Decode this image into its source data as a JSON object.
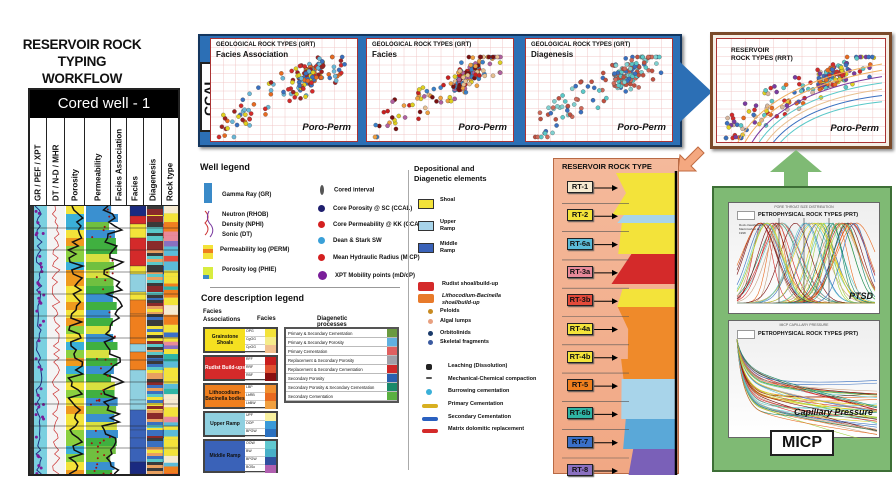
{
  "title": {
    "line1": "RESERVOIR ROCK TYPING",
    "line2": "WORKFLOW"
  },
  "well": {
    "header": "Cored well - 1",
    "columns": [
      "GR / PEF / XPT",
      "DT / N-D / MHR",
      "Porosity",
      "Permeability",
      "Facies Association",
      "Facies",
      "Diagenesis",
      "Rock type"
    ]
  },
  "ccal": {
    "label": "CCAL",
    "plots": [
      {
        "title": "GEOLOGICAL ROCK TYPES (GRT)",
        "subtitle": "Facies Association",
        "tag": "Poro-Perm"
      },
      {
        "title": "GEOLOGICAL ROCK TYPES (GRT)",
        "subtitle": "Facies",
        "tag": "Poro-Perm"
      },
      {
        "title": "GEOLOGICAL ROCK TYPES (GRT)",
        "subtitle": "Diagenesis",
        "tag": "Poro-Perm"
      }
    ]
  },
  "rrt": {
    "title1": "RESERVOIR",
    "title2": "ROCK TYPES (RRT)",
    "tag": "Poro-Perm"
  },
  "well_legend": {
    "title": "Well legend",
    "left": [
      "Gamma Ray (GR)",
      "Neutron (RHOB)",
      "Density (NPHI)",
      "Sonic (DT)",
      "Permeability log (PERM)",
      "Porosity log (PHIE)"
    ],
    "right": [
      {
        "label": "Cored interval",
        "color": "#555555"
      },
      {
        "label": "Core Porosity @ SC (CCAL)",
        "color": "#1f1f6e"
      },
      {
        "label": "Core Permeability @ KK (CCAL)",
        "color": "#d42020"
      },
      {
        "label": "Dean & Stark SW",
        "color": "#3aa0d8"
      },
      {
        "label": "Mean Hydraulic Radius (MICP)",
        "color": "#d42020"
      },
      {
        "label": "XPT Mobility points (mD/cP)",
        "color": "#7a1f9a"
      }
    ]
  },
  "core_legend": {
    "title": "Core description legend",
    "col1": "Facies Associations",
    "col2": "Facies",
    "col3": "Diagenetic processes",
    "associations": [
      {
        "label": "Grainstone Shoals",
        "color": "#f5e020",
        "facies": [
          "OPG",
          "CgOG",
          "CpOG"
        ],
        "swatches": [
          "#f3e33a",
          "#f5ec8a",
          "#f2c08f"
        ]
      },
      {
        "label": "Rudist Build-ups",
        "color": "#d42a2a",
        "facies": [
          "RFF",
          "RRF",
          "RBF"
        ],
        "swatches": [
          "#c81e1e",
          "#e05030",
          "#8a1010"
        ]
      },
      {
        "label": "Lithocodium-Bacinella bodies",
        "color": "#ef7f1e",
        "facies": [
          "LBP",
          "LbRB",
          "LbBW"
        ],
        "swatches": [
          "#f09030",
          "#e86a20",
          "#f0a040"
        ]
      },
      {
        "label": "Upper Ramp",
        "color": "#8fd0e0",
        "facies": [
          "UPF",
          "OOP",
          "BPGW"
        ],
        "swatches": [
          "#f8f0a0",
          "#3a9ad8",
          "#2a70c0"
        ]
      },
      {
        "label": "Middle Ramp",
        "color": "#3a62b8",
        "facies": [
          "OOW",
          "BW",
          "BPGW",
          "BOSc"
        ],
        "swatches": [
          "#60c8d0",
          "#48b0c8",
          "#3050a0",
          "#b060b0"
        ]
      }
    ],
    "processes": [
      {
        "label": "Primary & Secondary Cementation",
        "color": "#6a9a40"
      },
      {
        "label": "Primary & Secondary Porosity",
        "color": "#60b0e0"
      },
      {
        "label": "Primary Cementation",
        "color": "#e06060"
      },
      {
        "label": "Replacement & Secondary Porosity",
        "color": "#a0a0a8"
      },
      {
        "label": "Replacement & Secondary Cementation",
        "color": "#d02828"
      },
      {
        "label": "Secondary Porosity",
        "color": "#2a60b0"
      },
      {
        "label": "Secondary Porosity & Secondary Cementation",
        "color": "#1a8a6a"
      },
      {
        "label": "Secondary Cementation",
        "color": "#5ab040"
      }
    ]
  },
  "depositional": {
    "title1": "Depositional and",
    "title2": "Diagenetic elements",
    "boxes": [
      {
        "label": "Shoal",
        "color": "#f3e33a"
      },
      {
        "label": "Upper Ramp",
        "color": "#a8d4ea"
      },
      {
        "label": "Middle Ramp",
        "color": "#3a62b8"
      }
    ],
    "items": [
      "Rudist shoal/build-up",
      "Lithocodium-Bacinella shoal/build-up",
      "Peloids",
      "Algal lumps",
      "Orbitolinids",
      "Skeletal fragments",
      "Leaching (Dissolution)",
      "Mechanical-Chemical compaction",
      "Burrowing cementation",
      "Primary Cementation",
      "Secondary Cementation",
      "Matrix dolomitic replacement"
    ]
  },
  "rock_types": {
    "title": "RESERVOIR ROCK TYPE",
    "items": [
      {
        "label": "RT-1",
        "color": "#f6ead0"
      },
      {
        "label": "RT-2",
        "color": "#f3e33a"
      },
      {
        "label": "RT-6a",
        "color": "#5bbbd8"
      },
      {
        "label": "RT-3a",
        "color": "#e98a9a"
      },
      {
        "label": "RT-3b",
        "color": "#e34a3a"
      },
      {
        "label": "RT-4a",
        "color": "#f3e33a"
      },
      {
        "label": "RT-4b",
        "color": "#f3e33a"
      },
      {
        "label": "RT-5",
        "color": "#ef7f1e"
      },
      {
        "label": "RT-6b",
        "color": "#2fb5a5"
      },
      {
        "label": "RT-7",
        "color": "#3a70c8"
      },
      {
        "label": "RT-8",
        "color": "#8a70c0"
      }
    ]
  },
  "micp": {
    "label": "MICP",
    "ptsd": {
      "chart_title": "PORE THROAT SIZE DISTRIBUTION",
      "title": "PETROPHYSICAL ROCK TYPES (PRT)",
      "note": "Rock classification Macintosh et al., 1998",
      "tag": "PTSD"
    },
    "cap": {
      "chart_title": "MICP CAPILLARY PRESSURE",
      "title": "PETROPHYSICAL ROCK TYPES (PRT)",
      "tag": "Capillary Pressure"
    }
  }
}
